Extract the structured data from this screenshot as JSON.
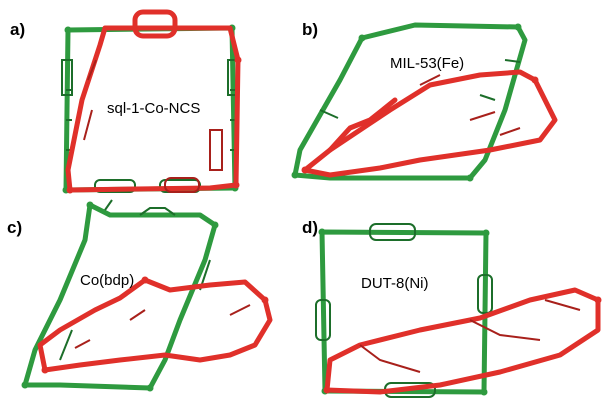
{
  "panels": [
    {
      "letter": "a)",
      "name": "sql-1-Co-NCS"
    },
    {
      "letter": "b)",
      "name": "MIL-53(Fe)"
    },
    {
      "letter": "c)",
      "name": "Co(bdp)"
    },
    {
      "letter": "d)",
      "name": "DUT-8(Ni)"
    }
  ],
  "colors": {
    "open_framework": "#2e9a3f",
    "closed_framework": "#e0302a"
  }
}
